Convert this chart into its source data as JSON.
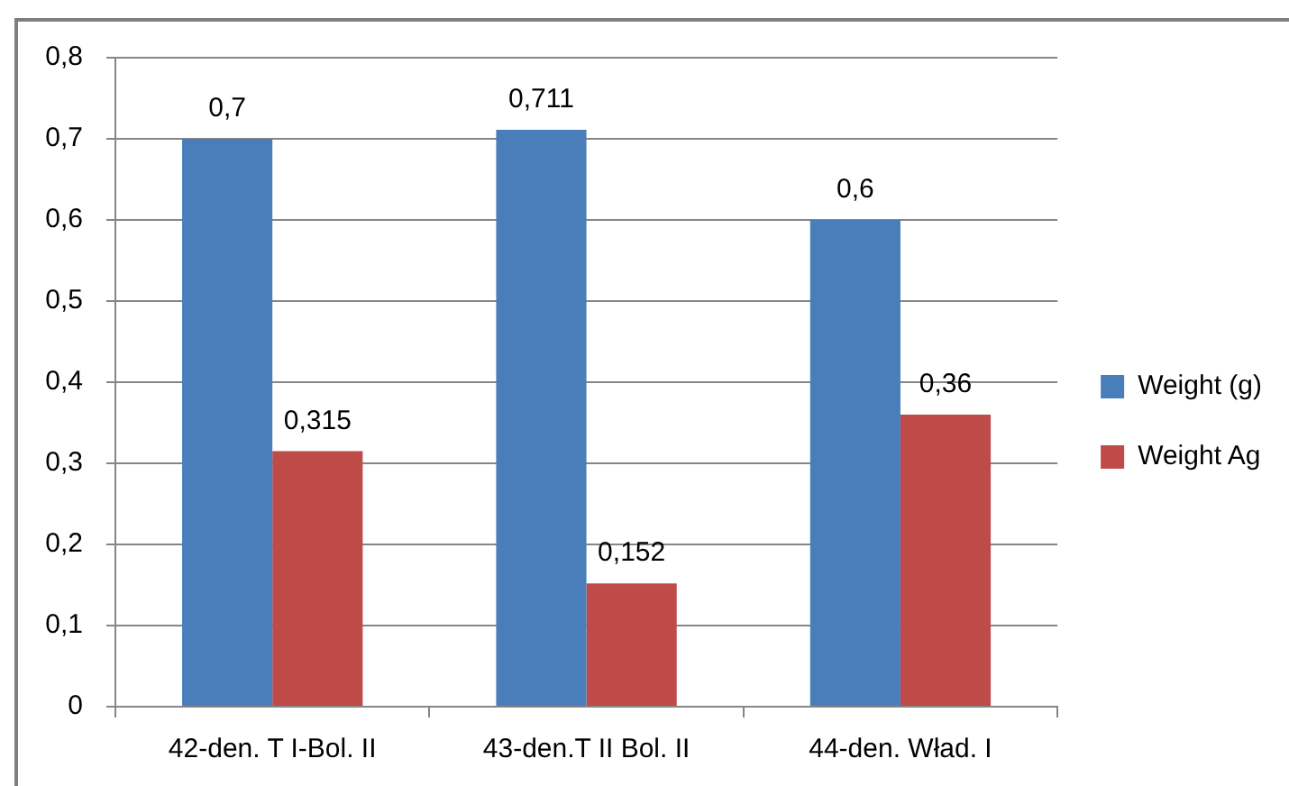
{
  "chart_data": {
    "type": "bar",
    "categories": [
      "42-den. T I-Bol. II",
      "43-den.T II Bol. II",
      "44-den. Wład. I"
    ],
    "series": [
      {
        "name": "Weight (g)",
        "color": "#4a7ebb",
        "values": [
          0.7,
          0.711,
          0.6
        ],
        "value_labels": [
          "0,7",
          "0,711",
          "0,6"
        ]
      },
      {
        "name": "Weight Ag",
        "color": "#be4b48",
        "values": [
          0.315,
          0.152,
          0.36
        ],
        "value_labels": [
          "0,315",
          "0,152",
          "0,36"
        ]
      }
    ],
    "ylim": [
      0,
      0.8
    ],
    "yticks": [
      0,
      {
        "value": 0.1,
        "label": "0,1"
      },
      {
        "value": 0.2,
        "label": "0,2"
      },
      {
        "value": 0.3,
        "label": "0,3"
      },
      {
        "value": 0.4,
        "label": "0,4"
      },
      {
        "value": 0.5,
        "label": "0,5"
      },
      {
        "value": 0.6,
        "label": "0,6"
      },
      {
        "value": 0.7,
        "label": "0,7"
      },
      {
        "value": 0.8,
        "label": "0,8"
      }
    ],
    "grid": "y",
    "legend": "right"
  }
}
